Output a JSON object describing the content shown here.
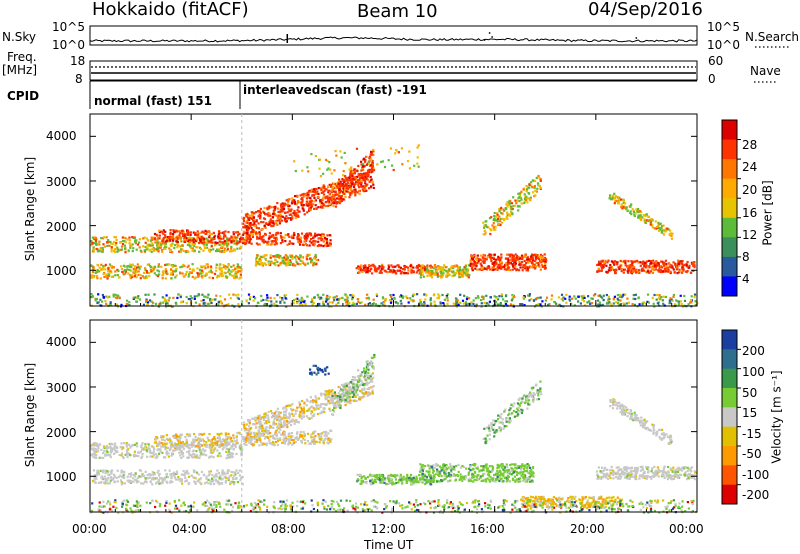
{
  "header": {
    "station": "Hokkaido (fitACF)",
    "beam": "Beam 10",
    "date": "04/Sep/2016"
  },
  "top_panels": {
    "nsky": {
      "label": "N.Sky",
      "ticks": [
        "10^5",
        "10^0"
      ],
      "right_label": "N.Search",
      "right_ticks": [
        "10^5",
        "10^0"
      ]
    },
    "freq": {
      "label_line1": "Freq.",
      "label_line2": "[MHz]",
      "ticks": [
        "18",
        "8"
      ],
      "right_label": "Nave",
      "right_ticks": [
        "60",
        "0"
      ]
    },
    "cpid": {
      "label": "CPID",
      "segments": [
        {
          "text": "normal (fast) 151",
          "start_hour": 0
        },
        {
          "text": "interleavedscan (fast) -191",
          "start_hour": 6.0
        }
      ]
    }
  },
  "chart_data": [
    {
      "type": "heatmap",
      "name": "power",
      "ylabel": "Slant Range [km]",
      "yticks": [
        1000,
        2000,
        3000,
        4000
      ],
      "ylim": [
        200,
        4500
      ],
      "xlim": [
        0,
        24
      ],
      "colorbar": {
        "label": "Power [dB]",
        "ticks": [
          "28",
          "24",
          "20",
          "16",
          "12",
          "8",
          "4"
        ],
        "colors": [
          "#dd0000",
          "#ff3300",
          "#ff7700",
          "#ffaa00",
          "#e8c400",
          "#5dbb3a",
          "#3a8f5a",
          "#2a5a9e",
          "#0000ff"
        ]
      }
    },
    {
      "type": "heatmap",
      "name": "velocity",
      "ylabel": "Slant Range [km]",
      "yticks": [
        1000,
        2000,
        3000,
        4000
      ],
      "ylim": [
        200,
        4500
      ],
      "xlim": [
        0,
        24
      ],
      "colorbar": {
        "label": "Velocity [m s⁻¹]",
        "ticks": [
          "200",
          "100",
          "50",
          "15",
          "-15",
          "-50",
          "-100",
          "-200"
        ],
        "colors": [
          "#1a3fa0",
          "#2e6e8e",
          "#3a9a4a",
          "#77cc33",
          "#c8c8c8",
          "#e0c000",
          "#ff9900",
          "#ff5500",
          "#dd0000"
        ]
      }
    }
  ],
  "xaxis": {
    "ticks": [
      "00:00",
      "04:00",
      "08:00",
      "12:00",
      "16:00",
      "20:00",
      "00:00"
    ],
    "label": "Time UT"
  }
}
